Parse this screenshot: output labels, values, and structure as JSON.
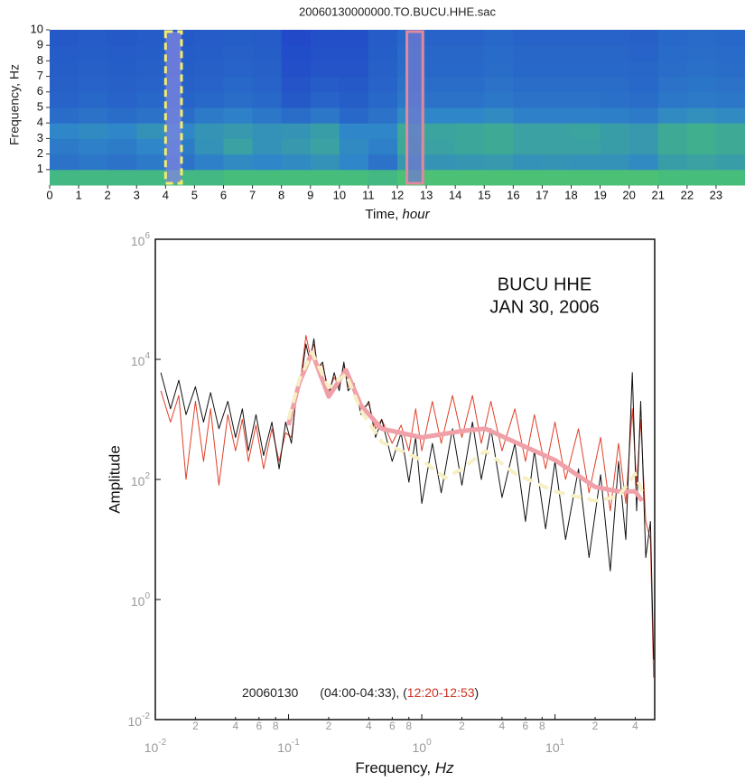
{
  "chart_data": [
    {
      "type": "heatmap",
      "title": "20060130000000.TO.BUCU.HHE.sac",
      "xlabel": {
        "text": "Time, ",
        "italic": "hour"
      },
      "ylabel": "Frequency, Hz",
      "xlim": [
        0,
        24
      ],
      "ylim": [
        0,
        10
      ],
      "xticks": [
        0,
        1,
        2,
        3,
        4,
        5,
        6,
        7,
        8,
        9,
        10,
        11,
        12,
        13,
        14,
        15,
        16,
        17,
        18,
        19,
        20,
        21,
        22,
        23
      ],
      "yticks": [
        1,
        2,
        3,
        4,
        5,
        6,
        7,
        8,
        9,
        10
      ],
      "colormap": [
        "#15227e",
        "#2148c8",
        "#2f86c8",
        "#47bf78",
        "#c8e64a"
      ],
      "values": [
        [
          0.72,
          0.72,
          0.72,
          0.72,
          0.72,
          0.72,
          0.74,
          0.74,
          0.74,
          0.74,
          0.74,
          0.72,
          0.76,
          0.76,
          0.76,
          0.76,
          0.76,
          0.76,
          0.76,
          0.76,
          0.76,
          0.74,
          0.74,
          0.74
        ],
        [
          0.42,
          0.44,
          0.42,
          0.45,
          0.42,
          0.48,
          0.52,
          0.5,
          0.52,
          0.55,
          0.5,
          0.42,
          0.58,
          0.56,
          0.57,
          0.58,
          0.55,
          0.56,
          0.55,
          0.55,
          0.52,
          0.6,
          0.62,
          0.6
        ],
        [
          0.45,
          0.48,
          0.46,
          0.5,
          0.46,
          0.55,
          0.62,
          0.55,
          0.58,
          0.62,
          0.52,
          0.48,
          0.65,
          0.62,
          0.64,
          0.66,
          0.62,
          0.62,
          0.62,
          0.6,
          0.58,
          0.66,
          0.68,
          0.66
        ],
        [
          0.5,
          0.52,
          0.5,
          0.55,
          0.5,
          0.56,
          0.58,
          0.55,
          0.56,
          0.6,
          0.5,
          0.5,
          0.66,
          0.63,
          0.64,
          0.66,
          0.62,
          0.62,
          0.63,
          0.6,
          0.58,
          0.66,
          0.68,
          0.66
        ],
        [
          0.4,
          0.42,
          0.4,
          0.42,
          0.4,
          0.45,
          0.48,
          0.44,
          0.4,
          0.44,
          0.38,
          0.42,
          0.52,
          0.5,
          0.5,
          0.52,
          0.48,
          0.48,
          0.48,
          0.47,
          0.45,
          0.52,
          0.54,
          0.52
        ],
        [
          0.36,
          0.38,
          0.36,
          0.38,
          0.36,
          0.38,
          0.4,
          0.38,
          0.32,
          0.36,
          0.34,
          0.38,
          0.44,
          0.42,
          0.42,
          0.44,
          0.42,
          0.42,
          0.42,
          0.41,
          0.4,
          0.44,
          0.45,
          0.44
        ],
        [
          0.35,
          0.36,
          0.35,
          0.36,
          0.35,
          0.36,
          0.38,
          0.36,
          0.3,
          0.33,
          0.32,
          0.36,
          0.42,
          0.4,
          0.4,
          0.42,
          0.4,
          0.4,
          0.4,
          0.4,
          0.38,
          0.42,
          0.43,
          0.42
        ],
        [
          0.34,
          0.35,
          0.34,
          0.35,
          0.34,
          0.35,
          0.36,
          0.35,
          0.28,
          0.3,
          0.3,
          0.35,
          0.4,
          0.38,
          0.38,
          0.4,
          0.38,
          0.38,
          0.38,
          0.38,
          0.37,
          0.4,
          0.41,
          0.4
        ],
        [
          0.33,
          0.34,
          0.33,
          0.34,
          0.33,
          0.34,
          0.35,
          0.34,
          0.27,
          0.29,
          0.29,
          0.34,
          0.39,
          0.37,
          0.37,
          0.39,
          0.37,
          0.37,
          0.37,
          0.37,
          0.36,
          0.39,
          0.4,
          0.39
        ],
        [
          0.32,
          0.33,
          0.32,
          0.33,
          0.32,
          0.33,
          0.34,
          0.33,
          0.26,
          0.28,
          0.28,
          0.33,
          0.38,
          0.36,
          0.36,
          0.38,
          0.36,
          0.36,
          0.36,
          0.36,
          0.35,
          0.38,
          0.39,
          0.38
        ]
      ],
      "highlights": [
        {
          "x": [
            4.0,
            4.55
          ],
          "color": "#f3ec6a",
          "fill": "#7f86e0",
          "dash": true
        },
        {
          "x": [
            12.33,
            12.88
          ],
          "color": "#e08aa0",
          "fill": "#6f7ad0",
          "dash": false
        }
      ]
    },
    {
      "type": "line",
      "log_x": true,
      "log_y": true,
      "xlabel": {
        "text": "Frequency, ",
        "italic": "Hz"
      },
      "ylabel": "Amplitude",
      "xlim": [
        0.01,
        56
      ],
      "ylim": [
        0.01,
        1000000
      ],
      "xticks": [
        {
          "value": 0.01,
          "label": "10",
          "exponent": "-2"
        },
        {
          "value": 0.1,
          "label": "10",
          "exponent": "-1"
        },
        {
          "value": 1,
          "label": "10",
          "exponent": "0"
        },
        {
          "value": 10,
          "label": "10",
          "exponent": "1"
        }
      ],
      "xticks_minor": [
        {
          "value": 0.02,
          "label": "2"
        },
        {
          "value": 0.04,
          "label": "4"
        },
        {
          "value": 0.06,
          "label": "6"
        },
        {
          "value": 0.08,
          "label": "8"
        },
        {
          "value": 0.2,
          "label": "2"
        },
        {
          "value": 0.4,
          "label": "4"
        },
        {
          "value": 0.6,
          "label": "6"
        },
        {
          "value": 0.8,
          "label": "8"
        },
        {
          "value": 2,
          "label": "2"
        },
        {
          "value": 4,
          "label": "4"
        },
        {
          "value": 6,
          "label": "6"
        },
        {
          "value": 8,
          "label": "8"
        },
        {
          "value": 20,
          "label": "2"
        },
        {
          "value": 40,
          "label": "4"
        }
      ],
      "yticks": [
        {
          "value": 0.01,
          "label": "10",
          "exponent": "-2"
        },
        {
          "value": 1,
          "label": "10",
          "exponent": "0"
        },
        {
          "value": 100,
          "label": "10",
          "exponent": "2"
        },
        {
          "value": 10000,
          "label": "10",
          "exponent": "4"
        },
        {
          "value": 1000000,
          "label": "10",
          "exponent": "6"
        }
      ],
      "annotation": [
        "BUCU HHE",
        "JAN 30, 2006"
      ],
      "legend": {
        "parts": [
          {
            "text": "20060130",
            "color": "#222222"
          },
          {
            "text": "(04:00-04:33), (",
            "color": "#222222"
          },
          {
            "text": "12:20-12:53",
            "color": "#d03020"
          },
          {
            "text": ")",
            "color": "#222222"
          }
        ]
      },
      "series": [
        {
          "color": "#e0402a",
          "width": 1,
          "dash": false,
          "x": [
            0.011,
            0.013,
            0.015,
            0.017,
            0.02,
            0.023,
            0.026,
            0.03,
            0.035,
            0.04,
            0.045,
            0.05,
            0.057,
            0.065,
            0.075,
            0.085,
            0.095,
            0.105,
            0.115,
            0.125,
            0.135,
            0.145,
            0.155,
            0.165,
            0.18,
            0.2,
            0.22,
            0.24,
            0.26,
            0.28,
            0.31,
            0.35,
            0.4,
            0.45,
            0.5,
            0.6,
            0.7,
            0.8,
            0.9,
            1,
            1.2,
            1.4,
            1.7,
            2,
            2.4,
            2.8,
            3.3,
            4,
            5,
            6,
            7,
            8.5,
            10,
            12,
            15,
            18,
            22,
            26,
            30,
            34,
            38,
            41,
            44,
            48,
            52,
            55
          ],
          "values": [
            3000,
            900,
            2500,
            100,
            2000,
            200,
            1500,
            80,
            1200,
            300,
            1000,
            200,
            800,
            150,
            700,
            200,
            600,
            500,
            2500,
            6000,
            25000,
            12000,
            18000,
            8000,
            8000,
            3000,
            5000,
            3500,
            8000,
            3500,
            3500,
            1500,
            1800,
            700,
            1000,
            400,
            800,
            300,
            1500,
            300,
            2000,
            400,
            2500,
            500,
            2500,
            400,
            2000,
            300,
            1500,
            200,
            1200,
            150,
            900,
            100,
            700,
            60,
            500,
            30,
            400,
            40,
            1500,
            80,
            1000,
            20,
            10,
            0.05
          ]
        },
        {
          "color": "#111111",
          "width": 1,
          "dash": false,
          "x": [
            0.011,
            0.013,
            0.015,
            0.017,
            0.02,
            0.023,
            0.026,
            0.03,
            0.035,
            0.04,
            0.045,
            0.05,
            0.057,
            0.065,
            0.075,
            0.085,
            0.095,
            0.105,
            0.115,
            0.125,
            0.135,
            0.145,
            0.155,
            0.165,
            0.18,
            0.2,
            0.22,
            0.24,
            0.26,
            0.28,
            0.31,
            0.35,
            0.4,
            0.45,
            0.5,
            0.6,
            0.7,
            0.8,
            0.9,
            1,
            1.2,
            1.4,
            1.7,
            2,
            2.4,
            2.8,
            3.3,
            4,
            5,
            6,
            7,
            8.5,
            10,
            12,
            15,
            18,
            22,
            26,
            30,
            34,
            38,
            41,
            44,
            48,
            52,
            55
          ],
          "values": [
            6000,
            1500,
            4500,
            1200,
            3500,
            900,
            2800,
            700,
            2000,
            500,
            1500,
            300,
            1200,
            250,
            900,
            150,
            900,
            400,
            3000,
            5000,
            18000,
            9000,
            22000,
            7000,
            9000,
            2500,
            6000,
            3000,
            9000,
            3000,
            4000,
            1200,
            2000,
            500,
            1000,
            200,
            600,
            90,
            500,
            40,
            400,
            60,
            700,
            80,
            900,
            100,
            700,
            50,
            400,
            20,
            300,
            15,
            200,
            10,
            150,
            5,
            120,
            3,
            200,
            10,
            6000,
            30,
            2000,
            5,
            20,
            0.1
          ]
        },
        {
          "color": "#f0a0a8",
          "width": 5,
          "dash": false,
          "x": [
            0.1,
            0.12,
            0.15,
            0.2,
            0.27,
            0.35,
            0.5,
            1,
            2,
            3,
            5,
            10,
            20,
            30,
            40,
            45
          ],
          "values": [
            800,
            4000,
            13000,
            2400,
            6600,
            1700,
            700,
            500,
            640,
            700,
            420,
            210,
            75,
            63,
            63,
            44
          ]
        },
        {
          "color": "#f6f0c4",
          "width": 4,
          "dash": true,
          "x": [
            0.1,
            0.12,
            0.15,
            0.2,
            0.27,
            0.35,
            0.5,
            1,
            1.5,
            2,
            3,
            5,
            10,
            20,
            30,
            40,
            45
          ],
          "values": [
            1000,
            4500,
            13000,
            3400,
            5700,
            1400,
            420,
            210,
            105,
            150,
            300,
            125,
            63,
            44,
            52,
            125,
            63
          ]
        }
      ]
    }
  ]
}
